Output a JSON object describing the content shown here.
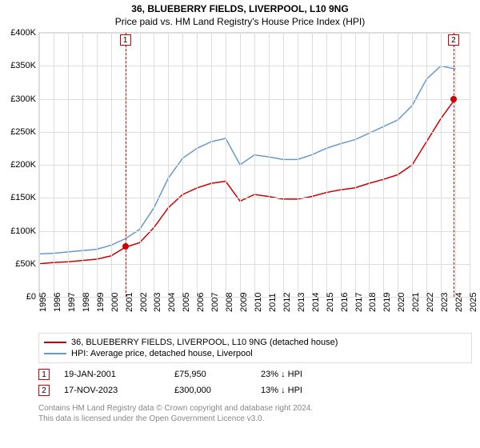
{
  "title": "36, BLUEBERRY FIELDS, LIVERPOOL, L10 9NG",
  "subtitle": "Price paid vs. HM Land Registry's House Price Index (HPI)",
  "chart": {
    "type": "line",
    "ylim": [
      0,
      400000
    ],
    "ytick_step": 50000,
    "y_labels": [
      "£0",
      "£50K",
      "£100K",
      "£150K",
      "£200K",
      "£250K",
      "£300K",
      "£350K",
      "£400K"
    ],
    "x_years": [
      1995,
      1996,
      1997,
      1998,
      1999,
      2000,
      2001,
      2002,
      2003,
      2004,
      2005,
      2006,
      2007,
      2008,
      2009,
      2010,
      2011,
      2012,
      2013,
      2014,
      2015,
      2016,
      2017,
      2018,
      2019,
      2020,
      2021,
      2022,
      2023,
      2024,
      2025
    ],
    "background_color": "#ffffff",
    "grid_color": "#dddddd",
    "series": {
      "property": {
        "color": "#cc0000",
        "width": 1.5,
        "values": [
          50000,
          52000,
          53000,
          55000,
          57000,
          62000,
          75000,
          82000,
          105000,
          135000,
          155000,
          165000,
          172000,
          175000,
          145000,
          155000,
          152000,
          148000,
          148000,
          152000,
          158000,
          162000,
          165000,
          172000,
          178000,
          185000,
          200000,
          235000,
          270000,
          300000
        ]
      },
      "hpi": {
        "color": "#6699cc",
        "width": 1.5,
        "values": [
          65000,
          66000,
          68000,
          70000,
          72000,
          78000,
          88000,
          102000,
          135000,
          180000,
          210000,
          225000,
          235000,
          240000,
          200000,
          215000,
          212000,
          208000,
          208000,
          215000,
          225000,
          232000,
          238000,
          248000,
          258000,
          268000,
          290000,
          330000,
          350000,
          345000
        ]
      }
    },
    "markers": [
      {
        "n": "1",
        "year": 2001,
        "value": 75950
      },
      {
        "n": "2",
        "year": 2023.88,
        "value": 300000
      }
    ]
  },
  "legend": {
    "property": {
      "color": "#cc0000",
      "label": "36, BLUEBERRY FIELDS, LIVERPOOL, L10 9NG (detached house)"
    },
    "hpi": {
      "color": "#6699cc",
      "label": "HPI: Average price, detached house, Liverpool"
    }
  },
  "sales": [
    {
      "n": "1",
      "date": "19-JAN-2001",
      "price": "£75,950",
      "hpi_diff": "23% ↓ HPI"
    },
    {
      "n": "2",
      "date": "17-NOV-2023",
      "price": "£300,000",
      "hpi_diff": "13% ↓ HPI"
    }
  ],
  "footer": {
    "line1": "Contains HM Land Registry data © Crown copyright and database right 2024.",
    "line2": "This data is licensed under the Open Government Licence v3.0."
  }
}
